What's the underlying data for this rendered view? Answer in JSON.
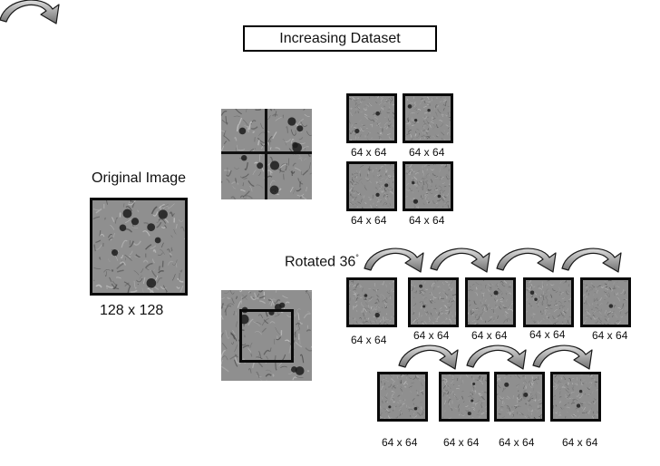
{
  "title": "Increasing Dataset",
  "original": {
    "label": "Original Image",
    "size": "128 x 128"
  },
  "rotated_label": "Rotated 36",
  "rotated_degree": "°",
  "quad_sizes": [
    "64 x 64",
    "64 x 64",
    "64 x 64",
    "64 x 64"
  ],
  "rot_row1_sizes": [
    "64 x 64",
    "64 x 64",
    "64 x 64",
    "64 x 64",
    "64 x 64"
  ],
  "rot_row2_sizes": [
    "64 x 64",
    "64 x 64",
    "64 x 64",
    "64 x 64"
  ],
  "colors": {
    "border": "#0a0a0a",
    "texture_base": "#8f8f8f",
    "arrow_fill": "#8a8a8a"
  }
}
